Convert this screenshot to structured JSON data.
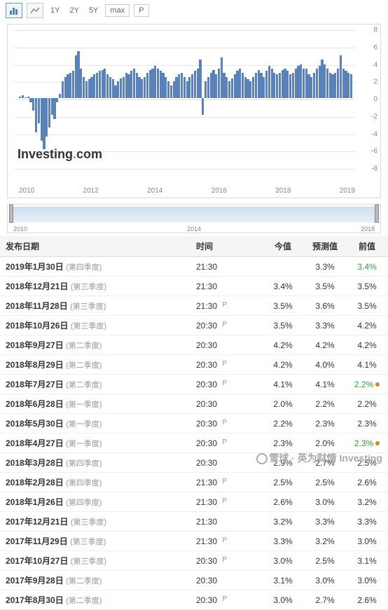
{
  "toolbar": {
    "ranges": [
      "1Y",
      "2Y",
      "5Y"
    ],
    "max": "max",
    "p": "P"
  },
  "chart": {
    "type": "bar",
    "ylim": [
      -8,
      8
    ],
    "yticks": [
      -8,
      -6,
      -4,
      -2,
      0,
      2,
      4,
      6,
      8
    ],
    "xticks": [
      "2010",
      "2012",
      "2014",
      "2016",
      "2018",
      "2019"
    ],
    "bar_color": "#5b82b8",
    "grid_color": "#e5e5e5",
    "bg": "#ffffff",
    "values": [
      0.2,
      0.3,
      0.1,
      0.2,
      -0.5,
      -1.5,
      -4,
      -3,
      -5,
      -6,
      -4.5,
      -3.5,
      -2,
      -2.5,
      -0.5,
      0.5,
      2,
      2.5,
      2.8,
      3,
      3.2,
      5,
      5.5,
      3.5,
      2.5,
      2,
      2.2,
      2.5,
      2.8,
      3,
      3.2,
      3.3,
      3.5,
      2.8,
      2.5,
      2.2,
      1.5,
      2,
      2.3,
      2.5,
      3,
      2.8,
      3.2,
      3.5,
      3,
      2.5,
      2.2,
      2.5,
      3,
      3.3,
      3.5,
      3.8,
      3.5,
      3.2,
      3,
      2.5,
      2,
      1.5,
      2,
      2.5,
      2.8,
      3,
      2.5,
      2,
      2.5,
      2.8,
      3.2,
      3.5,
      4.5,
      -2,
      2,
      2.5,
      3,
      3.3,
      2.8,
      3.5,
      4.8,
      3,
      2.5,
      2,
      2.3,
      2.8,
      3.2,
      3.5,
      3,
      2.5,
      2.2,
      2,
      2.5,
      3,
      3.3,
      3,
      2.5,
      3.2,
      3.8,
      3.5,
      3,
      2.8,
      3,
      3.3,
      3.5,
      3.2,
      2.8,
      3,
      3.5,
      3.8,
      4,
      3.5,
      3.5,
      2.8,
      2.5,
      3,
      3.5,
      3.8,
      4.5,
      4,
      3.5,
      3,
      2.8,
      3,
      3.5,
      5,
      3.5,
      3.2,
      3,
      2.8
    ]
  },
  "nav": {
    "xlabels": [
      "2010",
      "2014",
      "2018"
    ]
  },
  "columns": [
    "发布日期",
    "时间",
    "今值",
    "预测值",
    "前值"
  ],
  "rows": [
    {
      "date": "2019年1月30日",
      "q": "(第四季度)",
      "time": "21:30",
      "p": false,
      "actual": null,
      "ac": null,
      "forecast": "3.3%",
      "prev": "3.4%",
      "pc": "pos",
      "dot": false
    },
    {
      "date": "2018年12月21日",
      "q": "(第三季度)",
      "time": "21:30",
      "p": false,
      "actual": "3.4%",
      "ac": "pos",
      "forecast": "3.5%",
      "prev": "3.5%",
      "pc": null,
      "dot": false
    },
    {
      "date": "2018年11月28日",
      "q": "(第三季度)",
      "time": "21:30",
      "p": true,
      "actual": "3.5%",
      "ac": "pos",
      "forecast": "3.6%",
      "prev": "3.5%",
      "pc": null,
      "dot": false
    },
    {
      "date": "2018年10月26日",
      "q": "(第三季度)",
      "time": "20:30",
      "p": true,
      "actual": "3.5%",
      "ac": "neg",
      "forecast": "3.3%",
      "prev": "4.2%",
      "pc": null,
      "dot": false
    },
    {
      "date": "2018年9月27日",
      "q": "(第二季度)",
      "time": "20:30",
      "p": false,
      "actual": "4.2%",
      "ac": null,
      "forecast": "4.2%",
      "prev": "4.2%",
      "pc": null,
      "dot": false
    },
    {
      "date": "2018年8月29日",
      "q": "(第二季度)",
      "time": "20:30",
      "p": true,
      "actual": "4.2%",
      "ac": "neg",
      "forecast": "4.0%",
      "prev": "4.1%",
      "pc": null,
      "dot": false
    },
    {
      "date": "2018年7月27日",
      "q": "(第二季度)",
      "time": "20:30",
      "p": true,
      "actual": "4.1%",
      "ac": null,
      "forecast": "4.1%",
      "prev": "2.2%",
      "pc": "pos",
      "dot": true
    },
    {
      "date": "2018年6月28日",
      "q": "(第一季度)",
      "time": "20:30",
      "p": false,
      "actual": "2.0%",
      "ac": "pos",
      "forecast": "2.2%",
      "prev": "2.2%",
      "pc": null,
      "dot": false
    },
    {
      "date": "2018年5月30日",
      "q": "(第一季度)",
      "time": "20:30",
      "p": true,
      "actual": "2.2%",
      "ac": "pos",
      "forecast": "2.3%",
      "prev": "2.3%",
      "pc": null,
      "dot": false
    },
    {
      "date": "2018年4月27日",
      "q": "(第一季度)",
      "time": "20:30",
      "p": true,
      "actual": "2.3%",
      "ac": "neg",
      "forecast": "2.0%",
      "prev": "2.3%",
      "pc": "pos",
      "dot": true
    },
    {
      "date": "2018年3月28日",
      "q": "(第四季度)",
      "time": "20:30",
      "p": false,
      "actual": "2.9%",
      "ac": "neg",
      "forecast": "2.7%",
      "prev": "2.5%",
      "pc": null,
      "dot": false
    },
    {
      "date": "2018年2月28日",
      "q": "(第四季度)",
      "time": "21:30",
      "p": true,
      "actual": "2.5%",
      "ac": null,
      "forecast": "2.5%",
      "prev": "2.6%",
      "pc": null,
      "dot": false
    },
    {
      "date": "2018年1月26日",
      "q": "(第四季度)",
      "time": "21:30",
      "p": true,
      "actual": "2.6%",
      "ac": "pos",
      "forecast": "3.0%",
      "prev": "3.2%",
      "pc": null,
      "dot": false
    },
    {
      "date": "2017年12月21日",
      "q": "(第三季度)",
      "time": "21:30",
      "p": false,
      "actual": "3.2%",
      "ac": "pos",
      "forecast": "3.3%",
      "prev": "3.3%",
      "pc": null,
      "dot": false
    },
    {
      "date": "2017年11月29日",
      "q": "(第三季度)",
      "time": "21:30",
      "p": true,
      "actual": "3.3%",
      "ac": "neg",
      "forecast": "3.2%",
      "prev": "3.0%",
      "pc": null,
      "dot": false
    },
    {
      "date": "2017年10月27日",
      "q": "(第三季度)",
      "time": "20:30",
      "p": true,
      "actual": "3.0%",
      "ac": "neg",
      "forecast": "2.5%",
      "prev": "3.1%",
      "pc": null,
      "dot": false
    },
    {
      "date": "2017年9月28日",
      "q": "(第二季度)",
      "time": "20:30",
      "p": false,
      "actual": "3.1%",
      "ac": "neg",
      "forecast": "3.0%",
      "prev": "3.0%",
      "pc": null,
      "dot": false
    },
    {
      "date": "2017年8月30日",
      "q": "(第二季度)",
      "time": "20:30",
      "p": true,
      "actual": "3.0%",
      "ac": "neg",
      "forecast": "2.7%",
      "prev": "2.6%",
      "pc": null,
      "dot": false
    }
  ],
  "watermark": "Investing.com",
  "footer": "雪球 · 英为财情 Investing"
}
